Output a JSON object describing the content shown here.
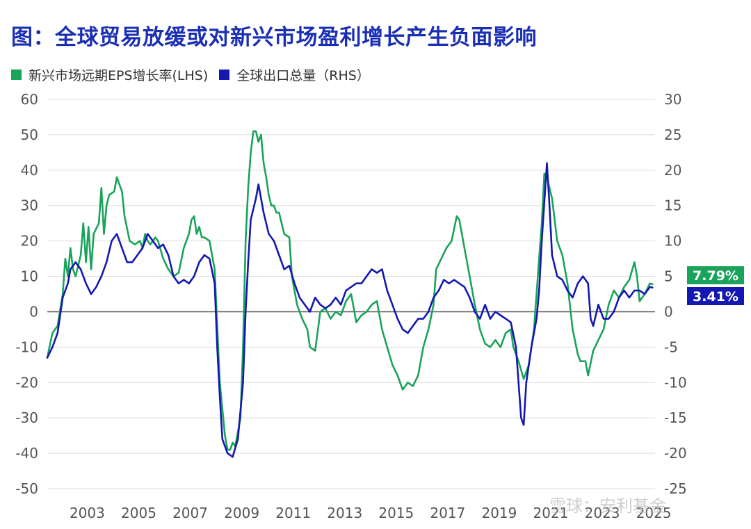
{
  "title": "图：全球贸易放缓或对新兴市场盈利增长产生负面影响",
  "watermark": "雪球：安利基金",
  "colors": {
    "green": "#1aa35a",
    "blue": "#1418b0",
    "grid": "#dddddd",
    "zero": "#555555",
    "title": "#1a2fb3"
  },
  "chart_data": {
    "type": "line",
    "x_ticks": [
      "2003",
      "2005",
      "2007",
      "2009",
      "2011",
      "2013",
      "2015",
      "2017",
      "2019",
      "2021",
      "2023",
      "2025"
    ],
    "y_left": {
      "ticks": [
        "60",
        "50",
        "40",
        "30",
        "20",
        "10",
        "0",
        "-10",
        "-20",
        "-30",
        "-40",
        "-50"
      ],
      "lim": [
        -50,
        60
      ]
    },
    "y_right": {
      "ticks": [
        "30",
        "25",
        "20",
        "15",
        "10",
        "5",
        "0",
        "-5",
        "-10",
        "-15",
        "-20",
        "-25"
      ],
      "lim": [
        -25,
        30
      ]
    },
    "grid": true,
    "legend_position": "top-left",
    "series": [
      {
        "name": "新兴市场远期EPS增长率(LHS)",
        "axis": "left",
        "color": "#1aa35a",
        "last_label": "7.79%",
        "points": [
          [
            2001.9,
            -13
          ],
          [
            2002.1,
            -6
          ],
          [
            2002.3,
            -4
          ],
          [
            2002.5,
            5
          ],
          [
            2002.6,
            15
          ],
          [
            2002.7,
            10
          ],
          [
            2002.8,
            18
          ],
          [
            2002.9,
            12
          ],
          [
            2003.0,
            10
          ],
          [
            2003.2,
            16
          ],
          [
            2003.3,
            25
          ],
          [
            2003.4,
            14
          ],
          [
            2003.5,
            24
          ],
          [
            2003.6,
            12
          ],
          [
            2003.7,
            22
          ],
          [
            2003.9,
            25
          ],
          [
            2004.0,
            35
          ],
          [
            2004.1,
            22
          ],
          [
            2004.2,
            30
          ],
          [
            2004.3,
            33
          ],
          [
            2004.5,
            34
          ],
          [
            2004.6,
            38
          ],
          [
            2004.8,
            34
          ],
          [
            2004.9,
            27
          ],
          [
            2005.1,
            20
          ],
          [
            2005.3,
            19
          ],
          [
            2005.5,
            20
          ],
          [
            2005.6,
            18
          ],
          [
            2005.7,
            22
          ],
          [
            2005.8,
            20
          ],
          [
            2005.9,
            19
          ],
          [
            2006.1,
            21
          ],
          [
            2006.2,
            20
          ],
          [
            2006.4,
            15
          ],
          [
            2006.6,
            12
          ],
          [
            2006.8,
            10
          ],
          [
            2007.0,
            11
          ],
          [
            2007.2,
            18
          ],
          [
            2007.4,
            22
          ],
          [
            2007.5,
            26
          ],
          [
            2007.6,
            27
          ],
          [
            2007.7,
            22
          ],
          [
            2007.8,
            24
          ],
          [
            2007.9,
            21
          ],
          [
            2008.0,
            21
          ],
          [
            2008.2,
            20
          ],
          [
            2008.4,
            12
          ],
          [
            2008.6,
            -20
          ],
          [
            2008.8,
            -35
          ],
          [
            2008.9,
            -39
          ],
          [
            2009.0,
            -39
          ],
          [
            2009.1,
            -37
          ],
          [
            2009.2,
            -38
          ],
          [
            2009.4,
            -30
          ],
          [
            2009.5,
            -10
          ],
          [
            2009.6,
            20
          ],
          [
            2009.7,
            35
          ],
          [
            2009.8,
            45
          ],
          [
            2009.9,
            51
          ],
          [
            2010.0,
            51
          ],
          [
            2010.1,
            48
          ],
          [
            2010.2,
            50
          ],
          [
            2010.3,
            42
          ],
          [
            2010.4,
            38
          ],
          [
            2010.5,
            33
          ],
          [
            2010.6,
            30
          ],
          [
            2010.7,
            30
          ],
          [
            2010.8,
            28
          ],
          [
            2010.9,
            28
          ],
          [
            2011.0,
            25
          ],
          [
            2011.1,
            22
          ],
          [
            2011.3,
            21
          ],
          [
            2011.4,
            10
          ],
          [
            2011.6,
            2
          ],
          [
            2011.8,
            -2
          ],
          [
            2012.0,
            -5
          ],
          [
            2012.1,
            -10
          ],
          [
            2012.3,
            -11
          ],
          [
            2012.5,
            0
          ],
          [
            2012.7,
            1
          ],
          [
            2012.9,
            -2
          ],
          [
            2013.1,
            0
          ],
          [
            2013.3,
            -1
          ],
          [
            2013.5,
            3
          ],
          [
            2013.7,
            5
          ],
          [
            2013.9,
            -3
          ],
          [
            2014.1,
            -1
          ],
          [
            2014.3,
            0
          ],
          [
            2014.5,
            2
          ],
          [
            2014.7,
            3
          ],
          [
            2014.9,
            -5
          ],
          [
            2015.1,
            -10
          ],
          [
            2015.3,
            -15
          ],
          [
            2015.5,
            -18
          ],
          [
            2015.7,
            -22
          ],
          [
            2015.9,
            -20
          ],
          [
            2016.1,
            -21
          ],
          [
            2016.3,
            -18
          ],
          [
            2016.5,
            -10
          ],
          [
            2016.7,
            -5
          ],
          [
            2016.9,
            2
          ],
          [
            2017.0,
            12
          ],
          [
            2017.2,
            15
          ],
          [
            2017.4,
            18
          ],
          [
            2017.6,
            20
          ],
          [
            2017.8,
            27
          ],
          [
            2017.9,
            26
          ],
          [
            2018.1,
            18
          ],
          [
            2018.3,
            10
          ],
          [
            2018.5,
            2
          ],
          [
            2018.7,
            -5
          ],
          [
            2018.9,
            -9
          ],
          [
            2019.1,
            -10
          ],
          [
            2019.3,
            -8
          ],
          [
            2019.5,
            -10
          ],
          [
            2019.7,
            -6
          ],
          [
            2019.9,
            -5
          ],
          [
            2020.0,
            -10
          ],
          [
            2020.2,
            -14
          ],
          [
            2020.4,
            -19
          ],
          [
            2020.6,
            -15
          ],
          [
            2020.8,
            -5
          ],
          [
            2020.9,
            5
          ],
          [
            2021.0,
            15
          ],
          [
            2021.1,
            25
          ],
          [
            2021.2,
            39
          ],
          [
            2021.3,
            38
          ],
          [
            2021.5,
            32
          ],
          [
            2021.7,
            20
          ],
          [
            2021.9,
            16
          ],
          [
            2022.1,
            8
          ],
          [
            2022.3,
            -5
          ],
          [
            2022.5,
            -12
          ],
          [
            2022.6,
            -14
          ],
          [
            2022.8,
            -14
          ],
          [
            2022.9,
            -18
          ],
          [
            2023.1,
            -11
          ],
          [
            2023.3,
            -8
          ],
          [
            2023.5,
            -5
          ],
          [
            2023.7,
            2
          ],
          [
            2023.9,
            6
          ],
          [
            2024.1,
            4
          ],
          [
            2024.3,
            7
          ],
          [
            2024.5,
            9
          ],
          [
            2024.7,
            14
          ],
          [
            2024.8,
            10
          ],
          [
            2024.9,
            3
          ],
          [
            2025.1,
            5
          ],
          [
            2025.3,
            8
          ],
          [
            2025.4,
            7.79
          ]
        ]
      },
      {
        "name": "全球出口总量（RHS）",
        "axis": "right",
        "color": "#1418b0",
        "last_label": "3.41%",
        "points": [
          [
            2001.9,
            -6.5
          ],
          [
            2002.1,
            -5
          ],
          [
            2002.3,
            -3
          ],
          [
            2002.5,
            2
          ],
          [
            2002.7,
            4
          ],
          [
            2002.8,
            6
          ],
          [
            2003.0,
            7
          ],
          [
            2003.2,
            6
          ],
          [
            2003.4,
            4
          ],
          [
            2003.6,
            2.5
          ],
          [
            2003.8,
            3.5
          ],
          [
            2004.0,
            5
          ],
          [
            2004.2,
            7
          ],
          [
            2004.4,
            10
          ],
          [
            2004.6,
            11
          ],
          [
            2004.8,
            9
          ],
          [
            2005.0,
            7
          ],
          [
            2005.2,
            7
          ],
          [
            2005.4,
            8
          ],
          [
            2005.6,
            9
          ],
          [
            2005.8,
            11
          ],
          [
            2006.0,
            10
          ],
          [
            2006.2,
            9
          ],
          [
            2006.4,
            9.5
          ],
          [
            2006.6,
            8
          ],
          [
            2006.8,
            5
          ],
          [
            2007.0,
            4
          ],
          [
            2007.2,
            4.5
          ],
          [
            2007.4,
            4
          ],
          [
            2007.6,
            5
          ],
          [
            2007.8,
            7
          ],
          [
            2008.0,
            8
          ],
          [
            2008.2,
            7.5
          ],
          [
            2008.4,
            4
          ],
          [
            2008.5,
            -5
          ],
          [
            2008.6,
            -12
          ],
          [
            2008.7,
            -18
          ],
          [
            2008.9,
            -20
          ],
          [
            2009.1,
            -20.5
          ],
          [
            2009.3,
            -18
          ],
          [
            2009.5,
            -10
          ],
          [
            2009.6,
            0
          ],
          [
            2009.7,
            7
          ],
          [
            2009.8,
            13
          ],
          [
            2010.0,
            16
          ],
          [
            2010.1,
            18
          ],
          [
            2010.3,
            14
          ],
          [
            2010.5,
            11
          ],
          [
            2010.7,
            10
          ],
          [
            2010.9,
            8
          ],
          [
            2011.1,
            6
          ],
          [
            2011.3,
            6.5
          ],
          [
            2011.5,
            4
          ],
          [
            2011.7,
            2
          ],
          [
            2011.9,
            1
          ],
          [
            2012.1,
            0
          ],
          [
            2012.3,
            2
          ],
          [
            2012.5,
            1
          ],
          [
            2012.7,
            0.5
          ],
          [
            2012.9,
            1
          ],
          [
            2013.1,
            2
          ],
          [
            2013.3,
            1
          ],
          [
            2013.5,
            3
          ],
          [
            2013.7,
            3.5
          ],
          [
            2013.9,
            4
          ],
          [
            2014.1,
            4
          ],
          [
            2014.3,
            5
          ],
          [
            2014.5,
            6
          ],
          [
            2014.7,
            5.5
          ],
          [
            2014.9,
            6
          ],
          [
            2015.1,
            3
          ],
          [
            2015.3,
            1
          ],
          [
            2015.5,
            -1
          ],
          [
            2015.7,
            -2.5
          ],
          [
            2015.9,
            -3
          ],
          [
            2016.1,
            -2
          ],
          [
            2016.3,
            -1
          ],
          [
            2016.5,
            -1
          ],
          [
            2016.7,
            0
          ],
          [
            2016.9,
            2
          ],
          [
            2017.1,
            3
          ],
          [
            2017.3,
            4.5
          ],
          [
            2017.5,
            4
          ],
          [
            2017.7,
            4.5
          ],
          [
            2017.9,
            4
          ],
          [
            2018.1,
            3.5
          ],
          [
            2018.3,
            2
          ],
          [
            2018.5,
            0
          ],
          [
            2018.7,
            -1
          ],
          [
            2018.9,
            1
          ],
          [
            2019.1,
            -1
          ],
          [
            2019.3,
            0
          ],
          [
            2019.5,
            -0.5
          ],
          [
            2019.7,
            -1
          ],
          [
            2019.9,
            -1.5
          ],
          [
            2020.1,
            -5
          ],
          [
            2020.3,
            -15
          ],
          [
            2020.4,
            -16
          ],
          [
            2020.5,
            -10
          ],
          [
            2020.7,
            -5
          ],
          [
            2020.9,
            -1
          ],
          [
            2021.0,
            3
          ],
          [
            2021.1,
            10
          ],
          [
            2021.3,
            21
          ],
          [
            2021.4,
            15
          ],
          [
            2021.5,
            8
          ],
          [
            2021.7,
            5
          ],
          [
            2021.9,
            4.5
          ],
          [
            2022.1,
            3
          ],
          [
            2022.3,
            2
          ],
          [
            2022.5,
            4
          ],
          [
            2022.7,
            5
          ],
          [
            2022.9,
            4
          ],
          [
            2023.0,
            -1
          ],
          [
            2023.1,
            -2
          ],
          [
            2023.3,
            1
          ],
          [
            2023.5,
            -1
          ],
          [
            2023.7,
            -1
          ],
          [
            2023.9,
            0
          ],
          [
            2024.1,
            2
          ],
          [
            2024.3,
            3
          ],
          [
            2024.5,
            2
          ],
          [
            2024.7,
            3
          ],
          [
            2024.9,
            3
          ],
          [
            2025.1,
            2.5
          ],
          [
            2025.3,
            3.5
          ],
          [
            2025.4,
            3.41
          ]
        ]
      }
    ]
  }
}
